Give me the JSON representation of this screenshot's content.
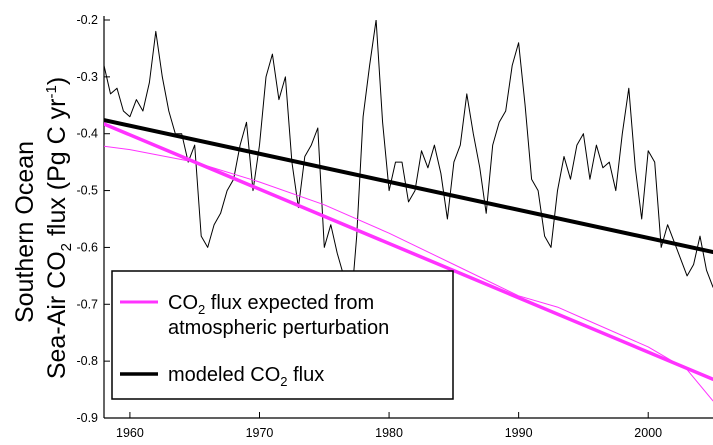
{
  "chart_data": {
    "type": "line",
    "title": "",
    "xlabel": "",
    "ylabel": {
      "line1": "Southern Ocean",
      "line2_parts": [
        "Sea-Air CO",
        "2",
        " flux (Pg C yr",
        "-1",
        ")"
      ]
    },
    "xlim": [
      1958,
      2005
    ],
    "ylim": [
      -0.9,
      -0.2
    ],
    "xticks": [
      1960,
      1970,
      1980,
      1990,
      2000
    ],
    "yticks": [
      -0.2,
      -0.3,
      -0.4,
      -0.5,
      -0.6,
      -0.7,
      -0.8,
      -0.9
    ],
    "ytick_labels": [
      "-0.2",
      "-0.3",
      "-0.4",
      "-0.5",
      "-0.6",
      "-0.7",
      "-0.8",
      "-0.9"
    ],
    "grid": false,
    "legend_position": "bottom-left",
    "legend": [
      {
        "color": "#ff33ff",
        "text_parts": [
          "CO",
          "2",
          " flux expected from"
        ],
        "text_line2": "atmospheric perturbation"
      },
      {
        "color": "#000000",
        "text_parts": [
          "modeled CO",
          "2",
          " flux"
        ]
      }
    ],
    "series": [
      {
        "id": "modeled-flux-variability",
        "color": "#000000",
        "kind": "thin",
        "x": [
          1958.0,
          1958.5,
          1959.0,
          1959.5,
          1960.0,
          1960.5,
          1961.0,
          1961.5,
          1962.0,
          1962.5,
          1963.0,
          1963.5,
          1964.0,
          1964.5,
          1965.0,
          1965.5,
          1966.0,
          1966.5,
          1967.0,
          1967.5,
          1968.0,
          1968.5,
          1969.0,
          1969.5,
          1970.0,
          1970.5,
          1971.0,
          1971.5,
          1972.0,
          1972.5,
          1973.0,
          1973.5,
          1974.0,
          1974.5,
          1975.0,
          1975.5,
          1976.0,
          1976.5,
          1977.0,
          1977.5,
          1978.0,
          1978.5,
          1979.0,
          1979.5,
          1980.0,
          1980.5,
          1981.0,
          1981.5,
          1982.0,
          1982.5,
          1983.0,
          1983.5,
          1984.0,
          1984.5,
          1985.0,
          1985.5,
          1986.0,
          1986.5,
          1987.0,
          1987.5,
          1988.0,
          1988.5,
          1989.0,
          1989.5,
          1990.0,
          1990.5,
          1991.0,
          1991.5,
          1992.0,
          1992.5,
          1993.0,
          1993.5,
          1994.0,
          1994.5,
          1995.0,
          1995.5,
          1996.0,
          1996.5,
          1997.0,
          1997.5,
          1998.0,
          1998.5,
          1999.0,
          1999.5,
          2000.0,
          2000.5,
          2001.0,
          2001.5,
          2002.0,
          2002.5,
          2003.0,
          2003.5,
          2004.0,
          2004.5,
          2005.0
        ],
        "y": [
          -0.28,
          -0.33,
          -0.32,
          -0.36,
          -0.37,
          -0.34,
          -0.36,
          -0.31,
          -0.22,
          -0.3,
          -0.36,
          -0.4,
          -0.4,
          -0.45,
          -0.42,
          -0.58,
          -0.6,
          -0.56,
          -0.54,
          -0.5,
          -0.48,
          -0.42,
          -0.38,
          -0.5,
          -0.42,
          -0.3,
          -0.26,
          -0.34,
          -0.3,
          -0.45,
          -0.53,
          -0.44,
          -0.42,
          -0.39,
          -0.6,
          -0.56,
          -0.61,
          -0.65,
          -0.72,
          -0.58,
          -0.37,
          -0.28,
          -0.2,
          -0.38,
          -0.5,
          -0.45,
          -0.45,
          -0.52,
          -0.5,
          -0.43,
          -0.46,
          -0.42,
          -0.47,
          -0.55,
          -0.45,
          -0.42,
          -0.33,
          -0.4,
          -0.46,
          -0.54,
          -0.42,
          -0.38,
          -0.36,
          -0.28,
          -0.24,
          -0.35,
          -0.48,
          -0.5,
          -0.58,
          -0.6,
          -0.5,
          -0.44,
          -0.48,
          -0.42,
          -0.4,
          -0.48,
          -0.42,
          -0.46,
          -0.45,
          -0.5,
          -0.4,
          -0.32,
          -0.46,
          -0.55,
          -0.43,
          -0.45,
          -0.6,
          -0.56,
          -0.59,
          -0.62,
          -0.65,
          -0.63,
          -0.58,
          -0.64,
          -0.67
        ]
      },
      {
        "id": "modeled-flux-trend",
        "color": "#000000",
        "kind": "thick",
        "x": [
          1958,
          2005
        ],
        "y": [
          -0.376,
          -0.608
        ]
      },
      {
        "id": "expected-flux-trend",
        "color": "#ff33ff",
        "kind": "thick",
        "x": [
          1958,
          2005
        ],
        "y": [
          -0.383,
          -0.832
        ]
      },
      {
        "id": "expected-flux-curve",
        "color": "#ff33ff",
        "kind": "thin",
        "x": [
          1958,
          1960,
          1965,
          1970,
          1975,
          1980,
          1985,
          1990,
          1993,
          1995,
          2000,
          2003,
          2005
        ],
        "y": [
          -0.422,
          -0.428,
          -0.45,
          -0.485,
          -0.525,
          -0.575,
          -0.63,
          -0.685,
          -0.705,
          -0.725,
          -0.775,
          -0.815,
          -0.87
        ]
      }
    ]
  }
}
